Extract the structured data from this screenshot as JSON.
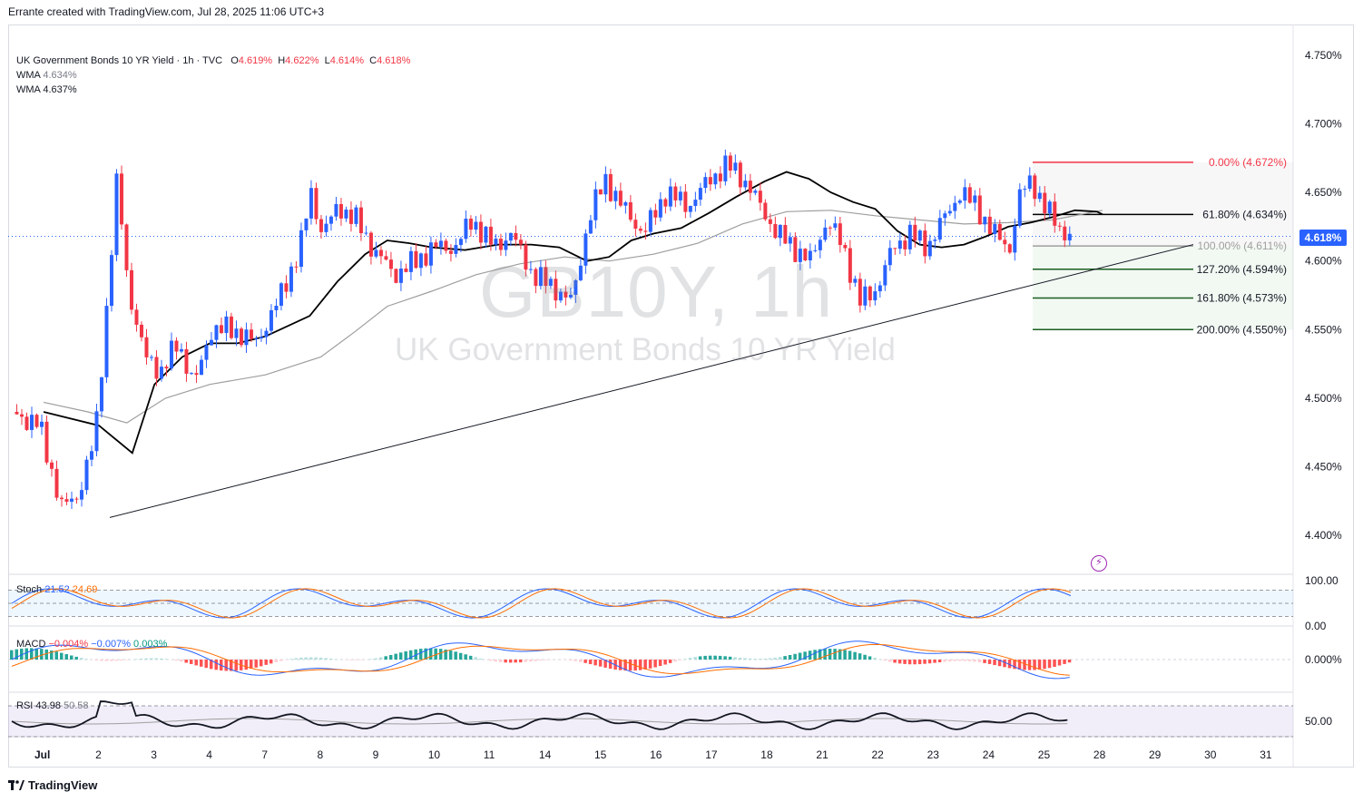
{
  "header": {
    "caption": "Errante created with TradingView.com, Jul 28, 2025 11:06 UTC+3"
  },
  "legend": {
    "symbol": "UK Government Bonds 10 YR Yield · 1h · TVC",
    "open_label": "O",
    "open": "4.619%",
    "high_label": "H",
    "high": "4.622%",
    "low_label": "L",
    "low": "4.614%",
    "close_label": "C",
    "close": "4.618%",
    "wma1_label": "WMA",
    "wma1": "4.634%",
    "wma2_label": "WMA",
    "wma2": "4.637%"
  },
  "watermark": {
    "ticker": "GB10Y, 1h",
    "name": "UK Government Bonds 10 YR Yield"
  },
  "price_tag": "4.618%",
  "stoch_legend": {
    "label": "Stoch",
    "k": "21.52",
    "d": "24.69"
  },
  "macd_legend": {
    "label": "MACD",
    "macd": "−0.004%",
    "signal": "−0.007%",
    "hist": "0.003%"
  },
  "rsi_legend": {
    "label": "RSI",
    "rsi": "43.98",
    "ma": "50.58"
  },
  "brand": "TradingView",
  "colors": {
    "up": "#2962ff",
    "down": "#f23645",
    "wma_fast": "#000000",
    "wma_slow": "#9e9e9e",
    "fib_zero": "#f23645",
    "fib_ext": "#1b5e20"
  },
  "chart_data": {
    "type": "candlestick",
    "title": "UK Government Bonds 10 YR Yield · 1h · TVC",
    "y_axis": {
      "ticks": [
        "4.750%",
        "4.700%",
        "4.650%",
        "4.600%",
        "4.550%",
        "4.500%",
        "4.450%",
        "4.400%"
      ],
      "range": [
        4.395,
        4.755
      ]
    },
    "x_axis": {
      "ticks": [
        "Jul",
        "2",
        "3",
        "4",
        "7",
        "8",
        "9",
        "10",
        "11",
        "14",
        "15",
        "16",
        "17",
        "18",
        "21",
        "22",
        "23",
        "24",
        "25",
        "28",
        "29",
        "30",
        "31"
      ]
    },
    "price_path": [
      [
        0,
        4.49
      ],
      [
        0.5,
        4.48
      ],
      [
        0.9,
        4.42
      ],
      [
        1.2,
        4.43
      ],
      [
        1.5,
        4.47
      ],
      [
        1.7,
        4.56
      ],
      [
        1.9,
        4.66
      ],
      [
        2.1,
        4.58
      ],
      [
        2.4,
        4.53
      ],
      [
        2.7,
        4.52
      ],
      [
        3.0,
        4.54
      ],
      [
        3.3,
        4.51
      ],
      [
        3.6,
        4.55
      ],
      [
        4.0,
        4.55
      ],
      [
        4.4,
        4.54
      ],
      [
        4.8,
        4.57
      ],
      [
        5.2,
        4.61
      ],
      [
        5.4,
        4.65
      ],
      [
        5.6,
        4.62
      ],
      [
        5.9,
        4.64
      ],
      [
        6.2,
        4.63
      ],
      [
        6.5,
        4.61
      ],
      [
        6.9,
        4.59
      ],
      [
        7.3,
        4.6
      ],
      [
        7.6,
        4.61
      ],
      [
        8.0,
        4.61
      ],
      [
        8.3,
        4.63
      ],
      [
        8.7,
        4.61
      ],
      [
        9.0,
        4.62
      ],
      [
        9.4,
        4.59
      ],
      [
        9.8,
        4.58
      ],
      [
        10.1,
        4.57
      ],
      [
        10.4,
        4.63
      ],
      [
        10.7,
        4.66
      ],
      [
        11.0,
        4.64
      ],
      [
        11.4,
        4.62
      ],
      [
        11.8,
        4.65
      ],
      [
        12.2,
        4.64
      ],
      [
        12.6,
        4.66
      ],
      [
        12.9,
        4.67
      ],
      [
        13.2,
        4.66
      ],
      [
        13.5,
        4.64
      ],
      [
        13.8,
        4.62
      ],
      [
        14.1,
        4.61
      ],
      [
        14.4,
        4.6
      ],
      [
        14.7,
        4.63
      ],
      [
        15.0,
        4.61
      ],
      [
        15.3,
        4.57
      ],
      [
        15.6,
        4.58
      ],
      [
        15.9,
        4.61
      ],
      [
        16.2,
        4.62
      ],
      [
        16.5,
        4.61
      ],
      [
        16.8,
        4.63
      ],
      [
        17.1,
        4.65
      ],
      [
        17.4,
        4.64
      ],
      [
        17.7,
        4.62
      ],
      [
        18.0,
        4.61
      ],
      [
        18.2,
        4.65
      ],
      [
        18.4,
        4.66
      ],
      [
        18.6,
        4.64
      ],
      [
        18.8,
        4.63
      ],
      [
        19.0,
        4.62
      ],
      [
        19.1,
        4.618
      ]
    ],
    "wma_fast": [
      [
        0,
        4.49
      ],
      [
        1,
        4.48
      ],
      [
        1.6,
        4.46
      ],
      [
        2,
        4.51
      ],
      [
        2.5,
        4.53
      ],
      [
        3,
        4.54
      ],
      [
        3.5,
        4.54
      ],
      [
        4,
        4.545
      ],
      [
        4.8,
        4.56
      ],
      [
        5.3,
        4.585
      ],
      [
        5.8,
        4.605
      ],
      [
        6.2,
        4.615
      ],
      [
        6.6,
        4.613
      ],
      [
        7.0,
        4.61
      ],
      [
        7.6,
        4.608
      ],
      [
        8.2,
        4.612
      ],
      [
        8.8,
        4.612
      ],
      [
        9.3,
        4.61
      ],
      [
        9.8,
        4.6
      ],
      [
        10.2,
        4.603
      ],
      [
        10.6,
        4.615
      ],
      [
        11.0,
        4.62
      ],
      [
        11.5,
        4.624
      ],
      [
        12.0,
        4.635
      ],
      [
        12.5,
        4.647
      ],
      [
        13.0,
        4.658
      ],
      [
        13.4,
        4.665
      ],
      [
        13.8,
        4.66
      ],
      [
        14.2,
        4.65
      ],
      [
        14.6,
        4.643
      ],
      [
        15.0,
        4.638
      ],
      [
        15.4,
        4.622
      ],
      [
        15.8,
        4.612
      ],
      [
        16.2,
        4.61
      ],
      [
        16.6,
        4.612
      ],
      [
        17.0,
        4.618
      ],
      [
        17.4,
        4.625
      ],
      [
        17.8,
        4.628
      ],
      [
        18.2,
        4.632
      ],
      [
        18.6,
        4.637
      ],
      [
        19.0,
        4.636
      ],
      [
        19.1,
        4.634
      ]
    ],
    "wma_slow": [
      [
        0,
        4.497
      ],
      [
        0.8,
        4.49
      ],
      [
        1.5,
        4.482
      ],
      [
        2.2,
        4.5
      ],
      [
        3,
        4.51
      ],
      [
        4,
        4.517
      ],
      [
        5,
        4.53
      ],
      [
        5.6,
        4.548
      ],
      [
        6.2,
        4.567
      ],
      [
        7,
        4.578
      ],
      [
        7.8,
        4.59
      ],
      [
        8.6,
        4.598
      ],
      [
        9.4,
        4.603
      ],
      [
        10.2,
        4.6
      ],
      [
        11,
        4.605
      ],
      [
        11.8,
        4.613
      ],
      [
        12.6,
        4.627
      ],
      [
        13.4,
        4.636
      ],
      [
        14.2,
        4.637
      ],
      [
        15,
        4.633
      ],
      [
        15.8,
        4.63
      ],
      [
        16.6,
        4.627
      ],
      [
        17.4,
        4.628
      ],
      [
        18.2,
        4.63
      ],
      [
        19.1,
        4.637
      ]
    ],
    "trendline": {
      "from": [
        0.9,
        4.413
      ],
      "to": [
        21,
        4.615
      ]
    },
    "fibonacci": [
      {
        "label": "0.00% (4.672%)",
        "value": 4.672
      },
      {
        "label": "61.80% (4.634%)",
        "value": 4.634
      },
      {
        "label": "100.00% (4.611%)",
        "value": 4.611
      },
      {
        "label": "127.20% (4.594%)",
        "value": 4.594
      },
      {
        "label": "161.80% (4.573%)",
        "value": 4.573
      },
      {
        "label": "200.00% (4.550%)",
        "value": 4.55
      }
    ],
    "last_price": 4.618,
    "stoch": {
      "ticks": [
        "100.00",
        "0.00"
      ],
      "upper": 80,
      "lower": 20,
      "k": 21.52,
      "d": 24.69
    },
    "macd": {
      "ticks": [
        "0.000%"
      ],
      "macd": -0.004,
      "signal": -0.007,
      "hist": 0.003
    },
    "rsi": {
      "ticks": [
        "50.00"
      ],
      "rsi": 43.98,
      "ma": 50.58,
      "upper": 70,
      "lower": 30
    }
  }
}
